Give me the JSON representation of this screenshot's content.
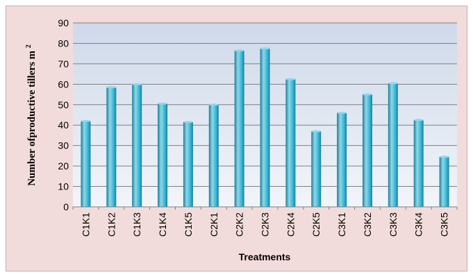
{
  "chart_data": {
    "type": "bar",
    "categories": [
      "C1K1",
      "C1K2",
      "C1K3",
      "C1K4",
      "C1K5",
      "C2K1",
      "C2K2",
      "C2K3",
      "C2K4",
      "C2K5",
      "C3K1",
      "C3K2",
      "C3K3",
      "C3K4",
      "C3K5"
    ],
    "values": [
      42,
      58.5,
      60,
      50.5,
      41.5,
      50,
      76.5,
      77.5,
      62.5,
      37,
      46,
      55,
      60.5,
      42.5,
      24.5
    ],
    "title": "",
    "xlabel": "Treatments",
    "ylabel": "Number ofproductive tillers m",
    "ylabel_superscript": "2",
    "ylim": [
      0,
      90
    ],
    "yticks": [
      0,
      10,
      20,
      30,
      40,
      50,
      60,
      70,
      80,
      90
    ],
    "grid": true,
    "legend": "none",
    "colors": {
      "bar_light": "#8fd8ea",
      "bar_mid": "#31b5d4",
      "bar_dark": "#1b7f98",
      "plot_bg_top": "#cfd9ea",
      "plot_bg_bottom": "#f2f5fa",
      "frame_bg": "#f2dcdb",
      "gridline": "#7f7f7f"
    }
  }
}
